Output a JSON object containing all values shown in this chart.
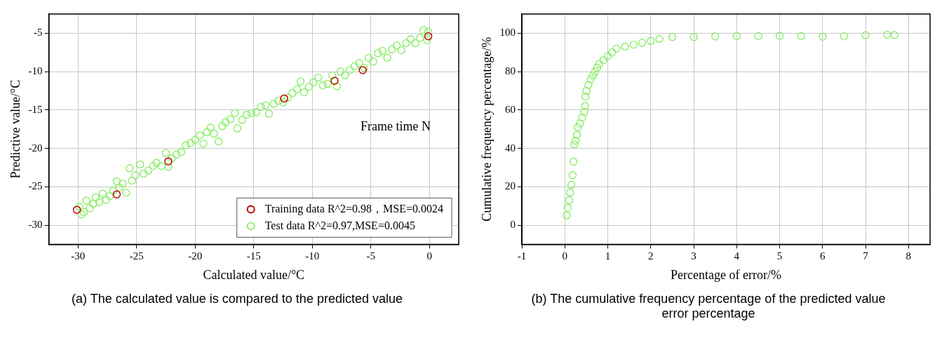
{
  "chart_data": [
    {
      "type": "scatter",
      "xlabel": "Calculated value/°C",
      "ylabel": "Predictive value/°C",
      "annotations": [
        "Frame time N",
        "(a) The calculated value is compared to the predicted value"
      ],
      "xlim": [
        -32.5,
        2.5
      ],
      "xticks": [
        -30,
        -25,
        -20,
        -15,
        -10,
        -5,
        0
      ],
      "ylim": [
        -32.5,
        -2.5
      ],
      "yticks": [
        -30,
        -25,
        -20,
        -15,
        -10,
        -5
      ],
      "grid": true,
      "legend": "bottom right",
      "marker": "circle",
      "series": [
        {
          "name": "Training data R^2=0.98，MSE=0.0024",
          "color": "#c00000",
          "x": [
            -30.1,
            -26.7,
            -22.3,
            -12.4,
            -8.1,
            -5.7,
            -0.1
          ],
          "values": [
            -28,
            -26,
            -21.7,
            -13.5,
            -11.2,
            -9.8,
            -5.4
          ]
        },
        {
          "name": "Test data R^2=0.97,MSE=0.0045",
          "color": "#90ee70",
          "x": [
            -29.9,
            -29.7,
            -29.5,
            -29.3,
            -29,
            -28.7,
            -28.5,
            -28.2,
            -27.9,
            -27.6,
            -27.3,
            -27,
            -26.7,
            -26.5,
            -26.2,
            -25.9,
            -25.6,
            -25.4,
            -25.1,
            -24.7,
            -24.4,
            -24,
            -23.6,
            -23.3,
            -22.9,
            -22.5,
            -22.3,
            -22,
            -21.6,
            -21.2,
            -20.8,
            -20.4,
            -20,
            -19.6,
            -19.3,
            -19,
            -18.7,
            -18.4,
            -18,
            -17.7,
            -17.4,
            -17,
            -16.6,
            -16.4,
            -16,
            -15.6,
            -15.2,
            -14.8,
            -14.4,
            -14,
            -13.7,
            -13.3,
            -12.9,
            -12.5,
            -12.1,
            -11.7,
            -11.3,
            -11,
            -10.7,
            -10.3,
            -9.9,
            -9.5,
            -9.1,
            -8.7,
            -8.3,
            -7.9,
            -7.6,
            -7.2,
            -6.8,
            -6.4,
            -6,
            -5.6,
            -5.2,
            -4.8,
            -4.4,
            -4,
            -3.6,
            -3.2,
            -2.8,
            -2.4,
            -2,
            -1.6,
            -1.2,
            -0.8,
            -0.5,
            -0.2,
            -0.1
          ],
          "values": [
            -27.6,
            -28.6,
            -28.3,
            -26.8,
            -27.8,
            -27.2,
            -26.4,
            -27,
            -25.9,
            -26.7,
            -26.2,
            -25.5,
            -24.3,
            -25.1,
            -24.6,
            -25.8,
            -22.6,
            -24.2,
            -23.5,
            -22.1,
            -23.3,
            -22.9,
            -22.3,
            -21.9,
            -22.3,
            -20.6,
            -22.4,
            -21.3,
            -20.8,
            -20.5,
            -19.6,
            -19.3,
            -18.9,
            -18.3,
            -19.4,
            -17.9,
            -17.3,
            -18.1,
            -19.1,
            -17.1,
            -16.6,
            -16.2,
            -15.4,
            -17.4,
            -16.3,
            -15.6,
            -15.4,
            -15.3,
            -14.6,
            -14.4,
            -15.5,
            -14.2,
            -13.8,
            -14,
            -13.4,
            -12.8,
            -12.3,
            -11.3,
            -12.7,
            -12,
            -11.4,
            -10.8,
            -11.8,
            -11.6,
            -10.5,
            -11.9,
            -10,
            -10.5,
            -9.8,
            -9.3,
            -8.9,
            -9.5,
            -8.2,
            -8.7,
            -7.6,
            -7.3,
            -8.2,
            -7.1,
            -6.6,
            -7.2,
            -6.3,
            -5.8,
            -6.3,
            -5.6,
            -4.6,
            -5.9,
            -4.8
          ]
        }
      ]
    },
    {
      "type": "scatter",
      "xlabel": "Percentage of error/%",
      "ylabel": "Cumulative frequency percentage/%",
      "annotations": [
        "(b) The cumulative frequency percentage of the predicted value error percentage"
      ],
      "xlim": [
        -1,
        8.5
      ],
      "xticks": [
        -1,
        0,
        1,
        2,
        3,
        4,
        5,
        6,
        7,
        8
      ],
      "ylim": [
        -10,
        110
      ],
      "yticks": [
        0,
        20,
        40,
        60,
        80,
        100
      ],
      "grid": true,
      "marker": "circle",
      "series": [
        {
          "color": "#90ee70",
          "x": [
            0.04,
            0.07,
            0.1,
            0.12,
            0.15,
            0.18,
            0.2,
            0.22,
            0.25,
            0.28,
            0.3,
            0.35,
            0.4,
            0.45,
            0.47,
            0.48,
            0.5,
            0.55,
            0.6,
            0.65,
            0.7,
            0.75,
            0.8,
            0.9,
            1,
            1.1,
            1.2,
            1.4,
            1.6,
            1.8,
            2,
            2.2,
            2.5,
            3,
            3.5,
            4,
            4.5,
            5,
            5.5,
            6,
            6.5,
            7,
            7.5,
            7.67
          ],
          "values": [
            5,
            9,
            13,
            17,
            21,
            26,
            33,
            42,
            44,
            47,
            51,
            53,
            56,
            59,
            62,
            67,
            70,
            73,
            76,
            78,
            80,
            82,
            84,
            86,
            88,
            90,
            92,
            93,
            94,
            95,
            96,
            97,
            98,
            98,
            98.3,
            98.5,
            98.5,
            98.7,
            98.5,
            98.2,
            98.4,
            99,
            99.2,
            99.1
          ]
        }
      ]
    }
  ]
}
